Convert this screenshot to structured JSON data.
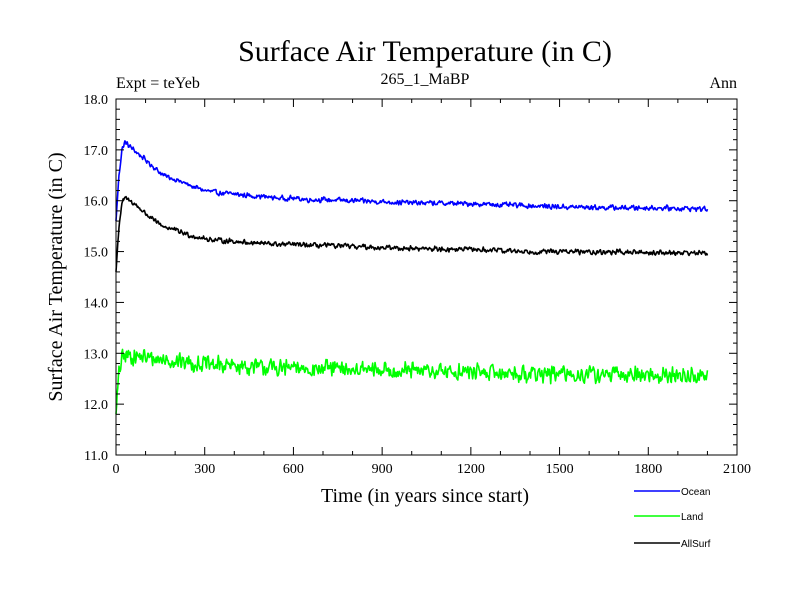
{
  "chart_data": {
    "type": "line",
    "title": "Surface Air Temperature (in C)",
    "subtitle": "265_1_MaBP",
    "left_label": "Expt = teYeb",
    "right_label": "Ann",
    "xlabel": "Time (in years since start)",
    "ylabel": "Surface Air Temperature (in C)",
    "xlim": [
      0,
      2100
    ],
    "ylim": [
      11.0,
      18.0
    ],
    "x_ticks": [
      0,
      300,
      600,
      900,
      1200,
      1500,
      1800,
      2100
    ],
    "x_tick_labels": [
      "0",
      "300",
      "600",
      "900",
      "1200",
      "1500",
      "1800",
      "2100"
    ],
    "y_ticks": [
      11.0,
      12.0,
      13.0,
      14.0,
      15.0,
      16.0,
      17.0,
      18.0
    ],
    "y_tick_labels": [
      "11.0",
      "12.0",
      "13.0",
      "14.0",
      "15.0",
      "16.0",
      "17.0",
      "18.0"
    ],
    "grid": false,
    "legend_position": "bottom-right, below plot",
    "series": [
      {
        "name": "Ocean",
        "color": "#0000ff",
        "x": [
          0,
          10,
          20,
          30,
          40,
          60,
          80,
          100,
          130,
          160,
          200,
          250,
          300,
          350,
          400,
          450,
          500,
          550,
          600,
          650,
          700,
          800,
          900,
          1000,
          1100,
          1200,
          1300,
          1400,
          1500,
          1600,
          1700,
          1800,
          1900,
          2000
        ],
        "values": [
          15.6,
          16.5,
          17.0,
          17.15,
          17.1,
          17.0,
          16.9,
          16.8,
          16.65,
          16.5,
          16.42,
          16.3,
          16.2,
          16.15,
          16.13,
          16.1,
          16.08,
          16.05,
          16.05,
          16.02,
          16.02,
          16.0,
          15.98,
          15.96,
          15.95,
          15.94,
          15.92,
          15.9,
          15.88,
          15.87,
          15.86,
          15.86,
          15.85,
          15.84
        ],
        "noise": 0.06
      },
      {
        "name": "Land",
        "color": "#00ff00",
        "x": [
          0,
          10,
          20,
          30,
          50,
          80,
          120,
          200,
          300,
          400,
          500,
          600,
          700,
          800,
          1000,
          1200,
          1400,
          1600,
          1800,
          2000
        ],
        "values": [
          11.8,
          12.6,
          12.9,
          12.95,
          12.95,
          12.93,
          12.9,
          12.85,
          12.78,
          12.75,
          12.72,
          12.7,
          12.7,
          12.68,
          12.65,
          12.63,
          12.6,
          12.58,
          12.57,
          12.55
        ],
        "noise": 0.2
      },
      {
        "name": "AllSurf",
        "color": "#000000",
        "x": [
          0,
          10,
          20,
          30,
          40,
          60,
          80,
          100,
          130,
          160,
          200,
          250,
          300,
          350,
          400,
          450,
          500,
          550,
          600,
          650,
          700,
          800,
          900,
          1000,
          1100,
          1200,
          1300,
          1400,
          1500,
          1600,
          1700,
          1800,
          1900,
          2000
        ],
        "values": [
          14.6,
          15.5,
          15.95,
          16.05,
          16.02,
          15.95,
          15.85,
          15.75,
          15.6,
          15.5,
          15.42,
          15.32,
          15.25,
          15.22,
          15.2,
          15.18,
          15.16,
          15.14,
          15.14,
          15.12,
          15.12,
          15.1,
          15.08,
          15.06,
          15.05,
          15.04,
          15.02,
          15.0,
          15.0,
          14.99,
          14.99,
          14.98,
          14.98,
          14.97
        ],
        "noise": 0.06
      }
    ]
  }
}
